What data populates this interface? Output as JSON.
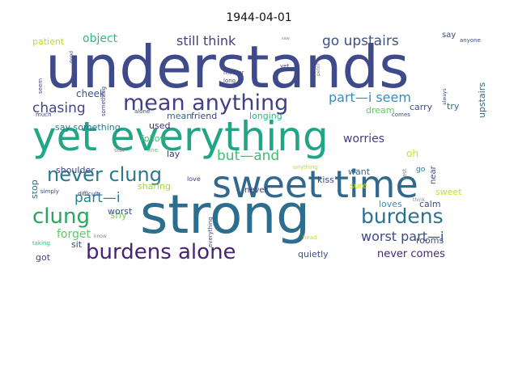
{
  "title": "1944-04-01",
  "words": [
    {
      "text": "understands",
      "color": "#3e4a89"
    },
    {
      "text": "yet everything",
      "color": "#21a685"
    },
    {
      "text": "strong",
      "color": "#2d6e8e"
    },
    {
      "text": "sweet time",
      "color": "#31688e"
    },
    {
      "text": "mean anything",
      "color": "#424086"
    },
    {
      "text": "burdens alone",
      "color": "#482475"
    },
    {
      "text": "never clung",
      "color": "#2a788e"
    },
    {
      "text": "clung",
      "color": "#2aa45e"
    },
    {
      "text": "burdens",
      "color": "#2c718e"
    },
    {
      "text": "go upstairs",
      "color": "#3b528b"
    },
    {
      "text": "still think",
      "color": "#433e85"
    },
    {
      "text": "chasing",
      "color": "#404688"
    },
    {
      "text": "part—i seem",
      "color": "#3b8bbd"
    },
    {
      "text": "but—and",
      "color": "#3fbc73"
    },
    {
      "text": "part—i",
      "color": "#26828e"
    },
    {
      "text": "worst part—i",
      "color": "#3e4989"
    },
    {
      "text": "object",
      "color": "#35b779"
    },
    {
      "text": "forget",
      "color": "#5ec962"
    },
    {
      "text": "worries",
      "color": "#424086"
    },
    {
      "text": "never comes",
      "color": "#482677"
    },
    {
      "text": "cheek",
      "color": "#3b528b"
    },
    {
      "text": "mean",
      "color": "#2f6c8e"
    },
    {
      "text": "friend",
      "color": "#424086"
    },
    {
      "text": "longing",
      "color": "#2fb47c"
    },
    {
      "text": "dream",
      "color": "#5ec962"
    },
    {
      "text": "carry",
      "color": "#3b528b"
    },
    {
      "text": "try",
      "color": "#2c728e"
    },
    {
      "text": "upstairs",
      "color": "#2c728e"
    },
    {
      "text": "patient",
      "color": "#bddf26"
    },
    {
      "text": "say",
      "color": "#3e4a89"
    },
    {
      "text": "shy",
      "color": "#7ad151"
    },
    {
      "text": "say something",
      "color": "#2a788e"
    },
    {
      "text": "shoulder",
      "color": "#404688"
    },
    {
      "text": "sharing",
      "color": "#a0da39"
    },
    {
      "text": "lay",
      "color": "#46327e"
    },
    {
      "text": "follow",
      "color": "#3fbc73"
    },
    {
      "text": "used",
      "color": "#482677"
    },
    {
      "text": "stop",
      "color": "#2c728e"
    },
    {
      "text": "worst",
      "color": "#3b528b"
    },
    {
      "text": "loves",
      "color": "#3b8bbd"
    },
    {
      "text": "calm",
      "color": "#3e4989"
    },
    {
      "text": "rooms",
      "color": "#3b528b"
    },
    {
      "text": "quietly",
      "color": "#3b528b"
    },
    {
      "text": "got",
      "color": "#404688"
    },
    {
      "text": "sit",
      "color": "#3e4989"
    },
    {
      "text": "kiss",
      "color": "#3e4989"
    },
    {
      "text": "sure",
      "color": "#c8e020"
    },
    {
      "text": "want",
      "color": "#2f6c8e"
    },
    {
      "text": "near",
      "color": "#404688"
    },
    {
      "text": "oh",
      "color": "#d2e21b"
    },
    {
      "text": "sweet",
      "color": "#c8e020"
    },
    {
      "text": "never",
      "color": "#46327e"
    },
    {
      "text": "go",
      "color": "#2c728e"
    },
    {
      "text": "anything",
      "color": "#bddf26"
    },
    {
      "text": "rest",
      "color": "#8a8a8a"
    },
    {
      "text": "think",
      "color": "#8a8a8a"
    },
    {
      "text": "love",
      "color": "#404688"
    },
    {
      "text": "one",
      "color": "#5ec962"
    },
    {
      "text": "still",
      "color": "#8a8a8a"
    },
    {
      "text": "know",
      "color": "#8a8a8a"
    },
    {
      "text": "head",
      "color": "#c8e020"
    },
    {
      "text": "everything",
      "color": "#404688"
    },
    {
      "text": "taking",
      "color": "#35b779"
    },
    {
      "text": "simply",
      "color": "#3e4989"
    },
    {
      "text": "difficult",
      "color": "#404688"
    },
    {
      "text": "much",
      "color": "#404688"
    },
    {
      "text": "seem",
      "color": "#404688"
    },
    {
      "text": "alone",
      "color": "#404688"
    },
    {
      "text": "something",
      "color": "#404688"
    },
    {
      "text": "mother",
      "color": "#3e4989"
    },
    {
      "text": "long",
      "color": "#3e4989"
    },
    {
      "text": "good",
      "color": "#404688"
    },
    {
      "text": "yet",
      "color": "#3e4989"
    },
    {
      "text": "peter",
      "color": "#8a8a8a"
    },
    {
      "text": "always",
      "color": "#3e4989"
    },
    {
      "text": "anyone",
      "color": "#404688"
    },
    {
      "text": "comes",
      "color": "#3e4989"
    },
    {
      "text": "saw",
      "color": "#8a8a8a"
    }
  ]
}
